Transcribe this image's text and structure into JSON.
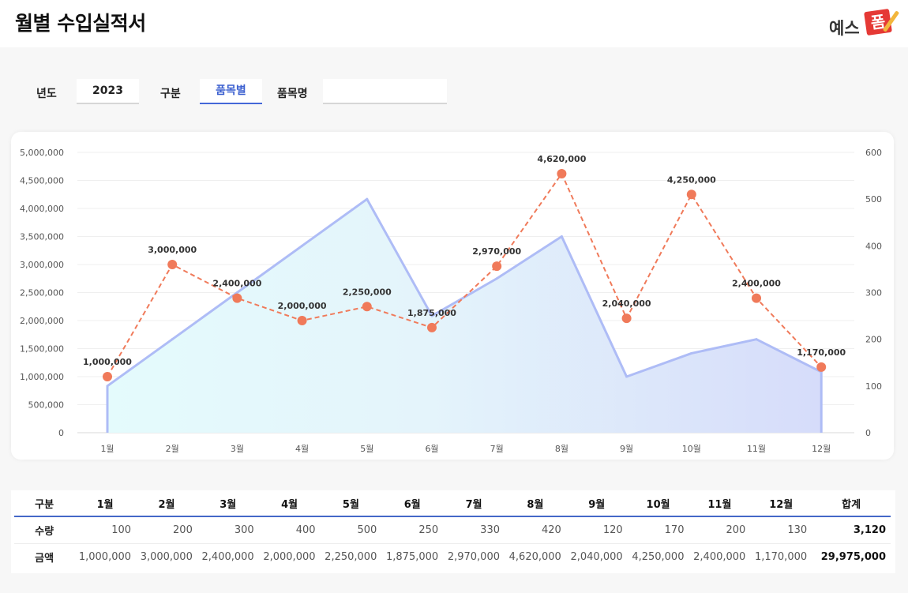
{
  "header": {
    "title": "월별 수입실적서",
    "logo_text": "예스",
    "logo_mark": "폼"
  },
  "filters": {
    "year_label": "년도",
    "year_value": "2023",
    "type_label": "구분",
    "type_value": "품목별",
    "item_label": "품목명",
    "item_value": ""
  },
  "colors": {
    "accent": "#4468d8",
    "line": "#f07a5a",
    "area": "#8ea0f0"
  },
  "chart_data": {
    "type": "area+line",
    "categories": [
      "1월",
      "2월",
      "3월",
      "4월",
      "5월",
      "6월",
      "7월",
      "8월",
      "9월",
      "10월",
      "11월",
      "12월"
    ],
    "series": [
      {
        "axis": "right",
        "type": "area",
        "values": [
          100,
          200,
          300,
          400,
          500,
          250,
          330,
          420,
          120,
          170,
          200,
          130
        ]
      },
      {
        "axis": "left",
        "type": "line",
        "values": [
          1000000,
          3000000,
          2400000,
          2000000,
          2250000,
          1875000,
          2970000,
          4620000,
          2040000,
          4250000,
          2400000,
          1170000
        ]
      }
    ],
    "left_axis": {
      "min": 0,
      "max": 5000000,
      "step": 500000,
      "ticks": [
        "0",
        "500,000",
        "1,000,000",
        "1,500,000",
        "2,000,000",
        "2,500,000",
        "3,000,000",
        "3,500,000",
        "4,000,000",
        "4,500,000",
        "5,000,000"
      ]
    },
    "right_axis": {
      "min": 0,
      "max": 600,
      "step": 100,
      "ticks": [
        "0",
        "100",
        "200",
        "300",
        "400",
        "500",
        "600"
      ]
    },
    "data_labels": [
      "1,000,000",
      "3,000,000",
      "2,400,000",
      "2,000,000",
      "2,250,000",
      "1,875,000",
      "2,970,000",
      "4,620,000",
      "2,040,000",
      "4,250,000",
      "2,400,000",
      "1,170,000"
    ],
    "grid": true
  },
  "table": {
    "header": [
      "구분",
      "1월",
      "2월",
      "3월",
      "4월",
      "5월",
      "6월",
      "7월",
      "8월",
      "9월",
      "10월",
      "11월",
      "12월",
      "합계"
    ],
    "rows": [
      {
        "label": "수량",
        "values": [
          "100",
          "200",
          "300",
          "400",
          "500",
          "250",
          "330",
          "420",
          "120",
          "170",
          "200",
          "130"
        ],
        "total": "3,120"
      },
      {
        "label": "금액",
        "values": [
          "1,000,000",
          "3,000,000",
          "2,400,000",
          "2,000,000",
          "2,250,000",
          "1,875,000",
          "2,970,000",
          "4,620,000",
          "2,040,000",
          "4,250,000",
          "2,400,000",
          "1,170,000"
        ],
        "total": "29,975,000"
      }
    ]
  }
}
